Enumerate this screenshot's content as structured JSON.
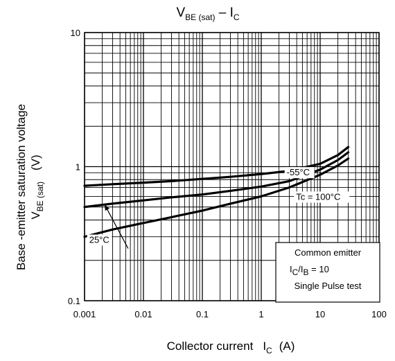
{
  "chart_data": {
    "type": "line",
    "title": {
      "main": "V",
      "sub": "BE (sat)",
      "dash": " – I",
      "sub2": "C"
    },
    "xlabel": {
      "text": "Collector current",
      "symbol": "I",
      "symbol_sub": "C",
      "unit": "(A)"
    },
    "ylabel": {
      "line1": "Base -emitter saturation voltage",
      "symbol": "V",
      "symbol_sub": "BE (sat)",
      "unit": "(V)"
    },
    "x_scale": "log",
    "y_scale": "log",
    "xlim": [
      0.001,
      100
    ],
    "ylim": [
      0.1,
      10
    ],
    "x_ticks": [
      {
        "value": 0.001,
        "label": "0.001"
      },
      {
        "value": 0.01,
        "label": "0.01"
      },
      {
        "value": 0.1,
        "label": "0.1"
      },
      {
        "value": 1,
        "label": "1"
      },
      {
        "value": 10,
        "label": "10"
      },
      {
        "value": 100,
        "label": "100"
      }
    ],
    "y_ticks": [
      {
        "value": 0.1,
        "label": "0.1"
      },
      {
        "value": 1,
        "label": "1"
      },
      {
        "value": 10,
        "label": "10"
      }
    ],
    "grid": true,
    "series": [
      {
        "name": "-55°C",
        "x": [
          0.001,
          0.003,
          0.01,
          0.03,
          0.1,
          0.3,
          1,
          3,
          10,
          20,
          30
        ],
        "y": [
          0.72,
          0.74,
          0.76,
          0.78,
          0.81,
          0.84,
          0.88,
          0.93,
          1.05,
          1.22,
          1.4
        ]
      },
      {
        "name": "Tc = 100°C",
        "x": [
          0.001,
          0.003,
          0.01,
          0.03,
          0.1,
          0.3,
          1,
          3,
          10,
          20,
          30
        ],
        "y": [
          0.3,
          0.34,
          0.38,
          0.42,
          0.47,
          0.53,
          0.6,
          0.7,
          0.87,
          1.02,
          1.15
        ]
      },
      {
        "name": "25°C",
        "x": [
          0.001,
          0.003,
          0.01,
          0.03,
          0.1,
          0.3,
          1,
          3,
          10,
          20,
          30
        ],
        "y": [
          0.5,
          0.53,
          0.56,
          0.59,
          0.62,
          0.66,
          0.71,
          0.78,
          0.95,
          1.12,
          1.28
        ]
      }
    ],
    "curve_labels": [
      {
        "text": "-55°C",
        "x": 2.7,
        "y": 0.86
      },
      {
        "text": "Tc = 100°C",
        "x": 3.9,
        "y": 0.565
      },
      {
        "text": "25°C",
        "x": 0.0012,
        "y": 0.27
      }
    ],
    "annotation_arrow": {
      "from_x": 0.0055,
      "from_y": 0.245,
      "to_x": 0.0022,
      "to_y": 0.52
    },
    "notes": {
      "line1": "Common emitter",
      "line2_main": "I",
      "line2_sub1": "C",
      "line2_mid": "/I",
      "line2_sub2": "B",
      "line2_tail": " = 10",
      "line3": "Single Pulse test"
    }
  }
}
